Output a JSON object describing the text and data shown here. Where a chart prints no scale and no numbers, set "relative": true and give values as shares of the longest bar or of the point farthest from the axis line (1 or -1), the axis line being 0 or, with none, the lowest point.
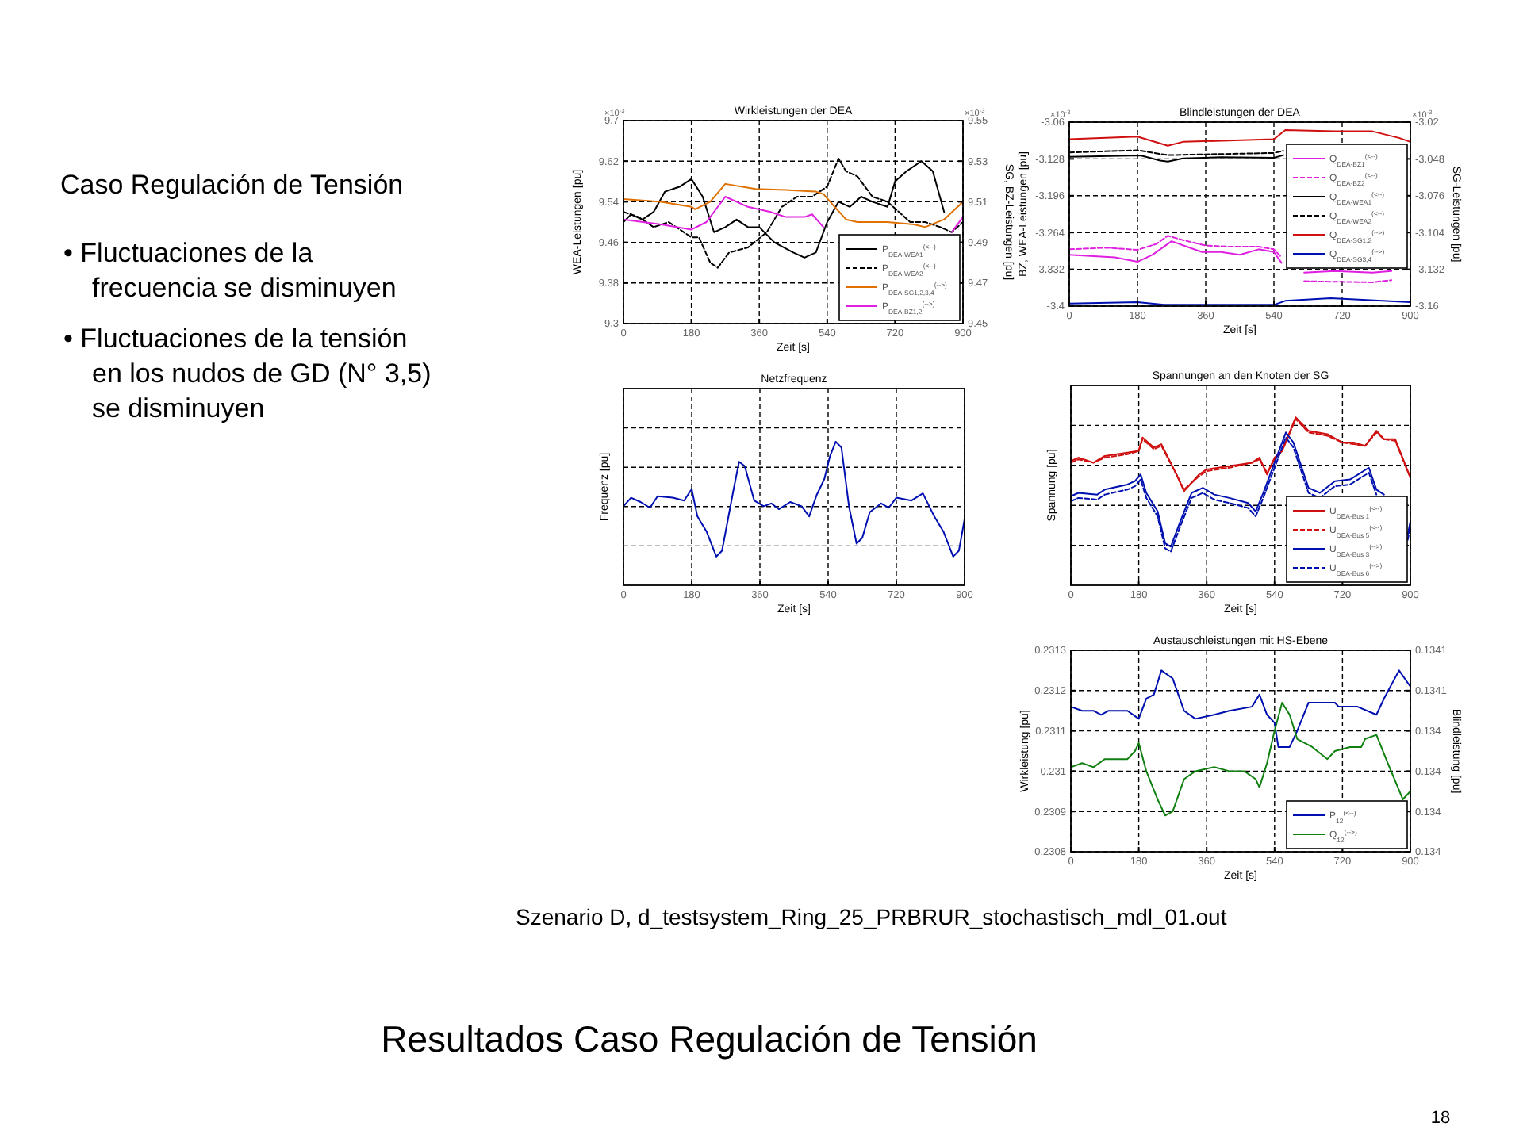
{
  "chart_data": [
    {
      "type": "other",
      "title": "Caso Regulación de Tensión",
      "annotations": [
        "• Fluctuaciones de la frecuencia se disminuyen",
        "• Fluctuaciones de la tensión en los nudos de GD (N° 3,5) se disminuyen"
      ]
    },
    {
      "type": "line",
      "title": "Wirkleistungen der DEA",
      "xlabel": "Zeit [s]",
      "ylabel": "WEA-Leistungen [pu]",
      "y2label": "SG, BZ-Leistungen [pu]",
      "annotations": [
        "×10$^{-3}$",
        "×10$^{-3}$"
      ],
      "xlim": [
        0,
        900
      ],
      "xticks": [
        0,
        180,
        360,
        540,
        720,
        900
      ],
      "ylim": [
        9.3,
        9.7
      ],
      "yticks": [
        9.3,
        9.38,
        9.46,
        9.54,
        9.62,
        9.7
      ],
      "y2lim": [
        9.45,
        9.55
      ],
      "y2ticks": [
        9.45,
        9.47,
        9.49,
        9.51,
        9.53,
        9.55
      ],
      "grid": true,
      "legend": "bottom right",
      "series": [
        {
          "name": "P$_{DEA-WEA1}$$^{(<--)}$",
          "color": "#000000",
          "line_style": "solid",
          "x": [
            0,
            20,
            50,
            80,
            110,
            150,
            180,
            210,
            240,
            270,
            300,
            330,
            360,
            400,
            450,
            480,
            510,
            540,
            570,
            600,
            630,
            660,
            700,
            720,
            750,
            790,
            820,
            850
          ],
          "values": [
            9.5,
            9.515,
            9.505,
            9.52,
            9.56,
            9.57,
            9.585,
            9.55,
            9.48,
            9.49,
            9.505,
            9.49,
            9.49,
            9.46,
            9.44,
            9.43,
            9.44,
            9.5,
            9.54,
            9.53,
            9.55,
            9.54,
            9.53,
            9.58,
            9.6,
            9.62,
            9.6,
            9.52
          ]
        },
        {
          "name": "P$_{DEA-WEA2}$$^{(<--)}$",
          "color": "#000000",
          "line_style": "dashed",
          "x": [
            0,
            40,
            80,
            120,
            180,
            200,
            230,
            250,
            280,
            330,
            380,
            420,
            460,
            500,
            540,
            570,
            590,
            620,
            660,
            700,
            730,
            760,
            800,
            840,
            870,
            900
          ],
          "values": [
            9.52,
            9.51,
            9.49,
            9.5,
            9.47,
            9.47,
            9.42,
            9.41,
            9.44,
            9.45,
            9.48,
            9.53,
            9.55,
            9.55,
            9.57,
            9.625,
            9.6,
            9.59,
            9.55,
            9.54,
            9.52,
            9.5,
            9.5,
            9.49,
            9.48,
            9.5
          ]
        },
        {
          "name": "P$_{DEA-SG1,2,3,4}$$^{(-->)}$",
          "color": "#e07000",
          "line_style": "solid",
          "axis": "y2",
          "x": [
            0,
            100,
            180,
            190,
            230,
            270,
            350,
            430,
            510,
            530,
            560,
            590,
            620,
            700,
            770,
            800,
            850,
            900
          ],
          "values": [
            9.5113,
            9.51,
            9.5075,
            9.5063,
            9.51,
            9.5188,
            9.5163,
            9.5158,
            9.515,
            9.5138,
            9.5075,
            9.5013,
            9.5,
            9.5,
            9.4988,
            9.4975,
            9.5013,
            9.51
          ]
        },
        {
          "name": "P$_{DEA-BZ1,2}$$^{(-->)}$",
          "color": "#e020e0",
          "line_style": "solid",
          "axis": "y2",
          "x": [
            0,
            100,
            180,
            220,
            270,
            330,
            390,
            430,
            480,
            500,
            530,
            540,
            870,
            900
          ],
          "values": [
            9.5013,
            9.4988,
            9.4963,
            9.5,
            9.5125,
            9.5075,
            9.505,
            9.5025,
            9.5025,
            9.5038,
            9.4975,
            null,
            9.495,
            9.5025
          ]
        }
      ]
    },
    {
      "type": "line",
      "title": "Blindleistungen der DEA",
      "xlabel": "Zeit [s]",
      "ylabel": "BZ, WEA-Leistungen [pu]",
      "y2label": "SG-Leistungen [pu]",
      "annotations": [
        "×10$^{-3}$",
        "×10$^{-3}$"
      ],
      "xlim": [
        0,
        900
      ],
      "xticks": [
        0,
        180,
        360,
        540,
        720,
        900
      ],
      "ylim": [
        -3.4,
        -3.06
      ],
      "yticks": [
        -3.4,
        -3.332,
        -3.264,
        -3.196,
        -3.128,
        -3.06
      ],
      "y2lim": [
        -3.16,
        -3.02
      ],
      "y2ticks": [
        -3.16,
        -3.132,
        -3.104,
        -3.076,
        -3.048,
        -3.02
      ],
      "grid": true,
      "legend": "right",
      "series": [
        {
          "name": "Q$_{DEA-BZ1}$$^{(<--)}$",
          "color": "#e020e0",
          "line_style": "solid",
          "x": [
            0,
            120,
            180,
            220,
            270,
            310,
            350,
            400,
            450,
            500,
            540,
            560,
            590,
            620,
            700,
            800,
            850
          ],
          "values": [
            -3.305,
            -3.31,
            -3.318,
            -3.305,
            -3.28,
            -3.29,
            -3.3,
            -3.3,
            -3.305,
            -3.295,
            -3.3,
            -3.32,
            null,
            -3.338,
            -3.335,
            -3.338,
            -3.335
          ]
        },
        {
          "name": "Q$_{DEA-BZ2}$$^{(<--)}$",
          "color": "#e020e0",
          "line_style": "dashed",
          "x": [
            0,
            100,
            180,
            230,
            260,
            300,
            360,
            420,
            500,
            540,
            560,
            590,
            620,
            800,
            850
          ],
          "values": [
            -3.295,
            -3.292,
            -3.296,
            -3.285,
            -3.27,
            -3.278,
            -3.288,
            -3.29,
            -3.29,
            -3.295,
            -3.31,
            null,
            -3.354,
            -3.356,
            -3.352
          ]
        },
        {
          "name": "Q$_{DEA-WEA1}$$^{(<--)}$",
          "color": "#000000",
          "line_style": "solid",
          "x": [
            0,
            160,
            190,
            240,
            260,
            300,
            400,
            540,
            565
          ],
          "values": [
            -3.124,
            -3.122,
            -3.122,
            -3.131,
            -3.133,
            -3.127,
            -3.125,
            -3.126,
            -3.121
          ]
        },
        {
          "name": "Q$_{DEA-WEA2}$$^{(<--)}$",
          "color": "#000000",
          "line_style": "dashed",
          "x": [
            0,
            180,
            260,
            540,
            565
          ],
          "values": [
            -3.116,
            -3.112,
            -3.121,
            -3.117,
            -3.113
          ]
        },
        {
          "name": "Q$_{DEA-SG1,2}$$^{(-->)}$",
          "color": "#d01010",
          "line_style": "solid",
          "axis": "y2",
          "x": [
            0,
            180,
            260,
            300,
            540,
            570,
            700,
            800,
            870,
            900
          ],
          "values": [
            -3.033,
            -3.031,
            -3.038,
            -3.035,
            -3.033,
            -3.026,
            -3.027,
            -3.027,
            -3.032,
            -3.035
          ]
        },
        {
          "name": "Q$_{DEA-SG3,4}$$^{(-->)}$",
          "color": "#0010b0",
          "line_style": "solid",
          "axis": "y2",
          "x": [
            0,
            180,
            250,
            540,
            570,
            690,
            900
          ],
          "values": [
            -3.158,
            -3.157,
            -3.159,
            -3.159,
            -3.156,
            -3.154,
            -3.157
          ]
        }
      ]
    },
    {
      "type": "line",
      "title": "Netzfrequenz",
      "xlabel": "Zeit [s]",
      "ylabel": "Frequenz [pu]",
      "relative": true,
      "xlim": [
        0,
        900
      ],
      "xticks": [
        0,
        180,
        360,
        540,
        720,
        900
      ],
      "grid": true,
      "series": [
        {
          "color": "#0010b0",
          "x": [
            0,
            20,
            45,
            70,
            90,
            130,
            160,
            180,
            195,
            220,
            245,
            260,
            290,
            305,
            320,
            345,
            370,
            390,
            410,
            440,
            470,
            490,
            510,
            530,
            545,
            560,
            575,
            595,
            615,
            630,
            650,
            680,
            700,
            720,
            760,
            790,
            820,
            845,
            870,
            885,
            900
          ],
          "values": [
            0.55,
            0.61,
            0.58,
            0.54,
            0.62,
            0.61,
            0.59,
            0.67,
            0.48,
            0.37,
            0.2,
            0.24,
            0.66,
            0.86,
            0.83,
            0.59,
            0.55,
            0.57,
            0.53,
            0.58,
            0.55,
            0.48,
            0.63,
            0.74,
            0.9,
            1,
            0.96,
            0.55,
            0.29,
            0.33,
            0.51,
            0.57,
            0.54,
            0.61,
            0.59,
            0.64,
            0.48,
            0.37,
            0.2,
            0.24,
            0.46
          ]
        }
      ]
    },
    {
      "type": "line",
      "title": "Spannungen an den Knoten der SG",
      "xlabel": "Zeit [s]",
      "ylabel": "Spannung [pu]",
      "relative": true,
      "xlim": [
        0,
        900
      ],
      "xticks": [
        0,
        180,
        360,
        540,
        720,
        900
      ],
      "grid": true,
      "legend": "bottom right",
      "series": [
        {
          "name": "U$_{DEA-Bus 1}$$^{(<--)}$",
          "color": "#d01010",
          "line_style": "solid",
          "x": [
            0,
            20,
            60,
            90,
            150,
            180,
            190,
            220,
            240,
            280,
            300,
            340,
            360,
            420,
            480,
            500,
            520,
            540,
            560,
            596,
            630,
            680,
            720,
            750,
            780,
            810,
            830,
            860,
            900
          ],
          "values": [
            0.74,
            0.76,
            0.73,
            0.77,
            0.79,
            0.8,
            0.88,
            0.82,
            0.84,
            0.66,
            0.56,
            0.66,
            0.69,
            0.71,
            0.73,
            0.76,
            0.66,
            0.76,
            0.8,
            1,
            0.92,
            0.9,
            0.85,
            0.85,
            0.83,
            0.92,
            0.87,
            0.87,
            0.64
          ]
        },
        {
          "name": "U$_{DEA-Bus 5}$$^{(<--)}$",
          "color": "#d01010",
          "line_style": "dashed",
          "x": [
            0,
            20,
            60,
            90,
            150,
            180,
            190,
            220,
            240,
            280,
            300,
            340,
            360,
            420,
            480,
            500,
            520,
            540,
            560,
            596,
            630,
            680,
            720,
            750,
            780,
            810,
            830,
            860,
            900
          ],
          "values": [
            0.73,
            0.75,
            0.73,
            0.76,
            0.78,
            0.8,
            0.87,
            0.81,
            0.83,
            0.66,
            0.57,
            0.65,
            0.68,
            0.7,
            0.73,
            0.75,
            0.67,
            0.75,
            0.8,
            0.99,
            0.91,
            0.89,
            0.85,
            0.84,
            0.83,
            0.91,
            0.87,
            0.86,
            0.64
          ]
        },
        {
          "name": "U$_{DEA-Bus 3}$$^{(-->)}$",
          "color": "#0010b0",
          "line_style": "solid",
          "x": [
            0,
            20,
            70,
            90,
            150,
            170,
            185,
            200,
            230,
            250,
            265,
            290,
            320,
            350,
            380,
            420,
            470,
            490,
            510,
            540,
            570,
            590,
            630,
            660,
            700,
            740,
            790,
            810,
            830,
            840,
            893,
            900
          ],
          "values": [
            0.53,
            0.55,
            0.54,
            0.57,
            0.6,
            0.62,
            0.66,
            0.55,
            0.44,
            0.25,
            0.23,
            0.38,
            0.55,
            0.58,
            0.54,
            0.52,
            0.49,
            0.44,
            0.55,
            0.73,
            0.91,
            0.85,
            0.58,
            0.55,
            0.62,
            0.63,
            0.7,
            0.57,
            0.54,
            null,
            0.3,
            0.38
          ]
        },
        {
          "name": "U$_{DEA-Bus 6}$$^{(-->)}$",
          "color": "#0010b0",
          "line_style": "dashed",
          "x": [
            0,
            20,
            70,
            90,
            150,
            170,
            185,
            200,
            230,
            250,
            265,
            290,
            320,
            350,
            380,
            420,
            470,
            490,
            510,
            540,
            570,
            590,
            630,
            660,
            700,
            740,
            790,
            810,
            830,
            840,
            893,
            900
          ],
          "values": [
            0.5,
            0.52,
            0.51,
            0.54,
            0.57,
            0.59,
            0.63,
            0.52,
            0.41,
            0.22,
            0.2,
            0.35,
            0.52,
            0.55,
            0.51,
            0.49,
            0.46,
            0.41,
            0.52,
            0.7,
            0.88,
            0.82,
            0.55,
            0.52,
            0.59,
            0.6,
            0.67,
            0.54,
            null,
            null,
            0.27,
            0.35
          ]
        }
      ]
    },
    {
      "type": "line",
      "title": "Austauschleistungen mit HS-Ebene",
      "xlabel": "Zeit [s]",
      "ylabel": "Wirkleistung [pu]",
      "y2label": "Blindleistung [pu]",
      "xlim": [
        0,
        900
      ],
      "xticks": [
        0,
        180,
        360,
        540,
        720,
        900
      ],
      "ylim": [
        0.2308,
        0.2313
      ],
      "yticks": [
        0.2308,
        0.2309,
        0.231,
        0.2311,
        0.2312,
        0.2313
      ],
      "y2lim": [
        0.13401,
        0.13406
      ],
      "y2ticks": [
        {
          "value": 0.13401,
          "label": "0.134"
        },
        {
          "value": 0.13402,
          "label": "0.134"
        },
        {
          "value": 0.13403,
          "label": "0.134"
        },
        {
          "value": 0.13404,
          "label": "0.134"
        },
        {
          "value": 0.13405,
          "label": "0.1341"
        },
        {
          "value": 0.13406,
          "label": "0.1341"
        }
      ],
      "grid": true,
      "legend": "bottom right",
      "series": [
        {
          "name": "P$_{12}$$^{(<--)}$",
          "color": "#0010b0",
          "line_style": "solid",
          "x": [
            0,
            30,
            60,
            80,
            100,
            150,
            180,
            200,
            220,
            240,
            270,
            300,
            330,
            380,
            420,
            480,
            500,
            520,
            540,
            550,
            580,
            600,
            630,
            680,
            700,
            710,
            760,
            810,
            830,
            870,
            900
          ],
          "values": [
            0.23116,
            0.23115,
            0.23115,
            0.23114,
            0.23115,
            0.23115,
            0.23113,
            0.23118,
            0.23119,
            0.23125,
            0.23123,
            0.23115,
            0.23113,
            0.23114,
            0.23115,
            0.23116,
            0.23119,
            0.23114,
            0.23112,
            0.23106,
            0.23106,
            0.2311,
            0.23117,
            0.23117,
            0.23117,
            0.23116,
            0.23116,
            0.23114,
            0.23118,
            0.23125,
            0.23121
          ]
        },
        {
          "name": "Q$_{12}$$^{(-->)}$",
          "color": "#108010",
          "line_style": "solid",
          "axis": "y2",
          "x": [
            0,
            30,
            60,
            90,
            150,
            170,
            180,
            200,
            230,
            250,
            270,
            300,
            330,
            380,
            420,
            460,
            490,
            500,
            520,
            540,
            560,
            580,
            600,
            640,
            680,
            700,
            740,
            770,
            780,
            810,
            840,
            880,
            900
          ],
          "values": [
            0.134031,
            0.134032,
            0.134031,
            0.134033,
            0.134033,
            0.134035,
            0.134037,
            0.13403,
            0.134023,
            0.134019,
            0.13402,
            0.134028,
            0.13403,
            0.134031,
            0.13403,
            0.13403,
            0.134028,
            0.134026,
            0.134032,
            0.13404,
            0.134047,
            0.134044,
            0.134038,
            0.134036,
            0.134033,
            0.134035,
            0.134036,
            0.134036,
            0.134038,
            0.134039,
            0.134032,
            0.134023,
            0.134025
          ]
        }
      ]
    },
    {
      "type": "other",
      "title": "Resultados Caso Regulación de Tensión",
      "annotations": [
        "Szenario D, d_testsystem_Ring_25_PRBRUR_stochastisch_mdl_01.out",
        "18"
      ]
    }
  ]
}
